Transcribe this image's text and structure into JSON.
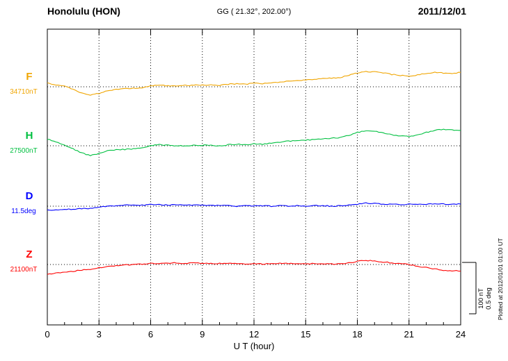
{
  "header": {
    "station": "Honolulu (HON)",
    "coords": "GG ( 21.32°, 202.00°)",
    "date": "2011/12/01"
  },
  "side_note": "Plotted at 2012/01/01 01:00 UT",
  "scale_bar": {
    "nt_label": "100 nT",
    "deg_label": "0.5 deg"
  },
  "chart_data": {
    "type": "line",
    "title": "Honolulu (HON) magnetogram 2011/12/01",
    "xlabel": "U T (hour)",
    "xlim": [
      0,
      24
    ],
    "x_ticks": [
      0,
      3,
      6,
      9,
      12,
      15,
      18,
      21,
      24
    ],
    "grid_hours": [
      3,
      6,
      9,
      12,
      15,
      18,
      21
    ],
    "grid": true,
    "legend_position": "left-margin",
    "scale_bar": {
      "nT": 100,
      "deg": 0.5
    },
    "x_hours": [
      0,
      0.5,
      1,
      1.5,
      2,
      2.5,
      3,
      3.5,
      4,
      4.5,
      5,
      5.5,
      6,
      6.5,
      7,
      7.5,
      8,
      8.5,
      9,
      9.5,
      10,
      10.5,
      11,
      11.5,
      12,
      12.5,
      13,
      13.5,
      14,
      14.5,
      15,
      15.5,
      16,
      16.5,
      17,
      17.5,
      18,
      18.5,
      19,
      19.5,
      20,
      20.5,
      21,
      21.5,
      22,
      22.5,
      23,
      23.5,
      24
    ],
    "series": [
      {
        "name": "F",
        "unit": "nT",
        "color": "#f0a500",
        "baseline_value": 34710,
        "baseline_label": "34710nT",
        "deviations": [
          7,
          4,
          1,
          -5,
          -12,
          -16,
          -13,
          -8,
          -5,
          -4,
          -3,
          -2,
          2,
          3,
          2,
          2,
          3,
          3,
          3,
          4,
          3,
          5,
          6,
          5,
          7,
          6,
          8,
          9,
          11,
          12,
          13,
          14,
          16,
          17,
          18,
          22,
          27,
          30,
          29,
          27,
          24,
          22,
          21,
          23,
          26,
          28,
          27,
          26,
          28
        ]
      },
      {
        "name": "H",
        "unit": "nT",
        "color": "#00c040",
        "baseline_value": 27500,
        "baseline_label": "27500nT",
        "deviations": [
          13,
          8,
          2,
          -6,
          -14,
          -19,
          -15,
          -10,
          -8,
          -7,
          -6,
          -4,
          0,
          2,
          1,
          0,
          0,
          1,
          1,
          1,
          0,
          2,
          3,
          2,
          4,
          3,
          5,
          7,
          9,
          10,
          11,
          12,
          14,
          15,
          16,
          20,
          26,
          29,
          28,
          25,
          21,
          19,
          18,
          21,
          26,
          30,
          32,
          31,
          30
        ]
      },
      {
        "name": "D",
        "unit": "deg",
        "color": "#0000ff",
        "baseline_value": 11.5,
        "baseline_label": "11.5deg",
        "deviations": [
          -0.04,
          -0.035,
          -0.03,
          -0.03,
          -0.025,
          -0.02,
          -0.01,
          0,
          0.005,
          0.01,
          0.01,
          0.01,
          0.015,
          0.015,
          0.01,
          0.015,
          0.01,
          0.01,
          0.01,
          0.005,
          0.01,
          0.005,
          0,
          0.005,
          0,
          0.005,
          0,
          0.005,
          0,
          0.005,
          0,
          0.005,
          0.005,
          0,
          0.005,
          0.01,
          0.02,
          0.03,
          0.025,
          0.02,
          0.02,
          0.015,
          0.02,
          0.02,
          0.02,
          0.025,
          0.02,
          0.02,
          0.02
        ]
      },
      {
        "name": "Z",
        "unit": "nT",
        "color": "#ff0000",
        "baseline_value": 21100,
        "baseline_label": "21100nT",
        "deviations": [
          -19,
          -17,
          -15,
          -13,
          -11,
          -9,
          -6,
          -4,
          -2,
          -1,
          0,
          1,
          2,
          2,
          3,
          3,
          2,
          3,
          2,
          2,
          2,
          2,
          2,
          1,
          2,
          1,
          2,
          2,
          2,
          2,
          1,
          2,
          1,
          1,
          1,
          3,
          6,
          8,
          7,
          5,
          3,
          2,
          0,
          -3,
          -6,
          -9,
          -11,
          -12,
          -13
        ]
      }
    ]
  }
}
